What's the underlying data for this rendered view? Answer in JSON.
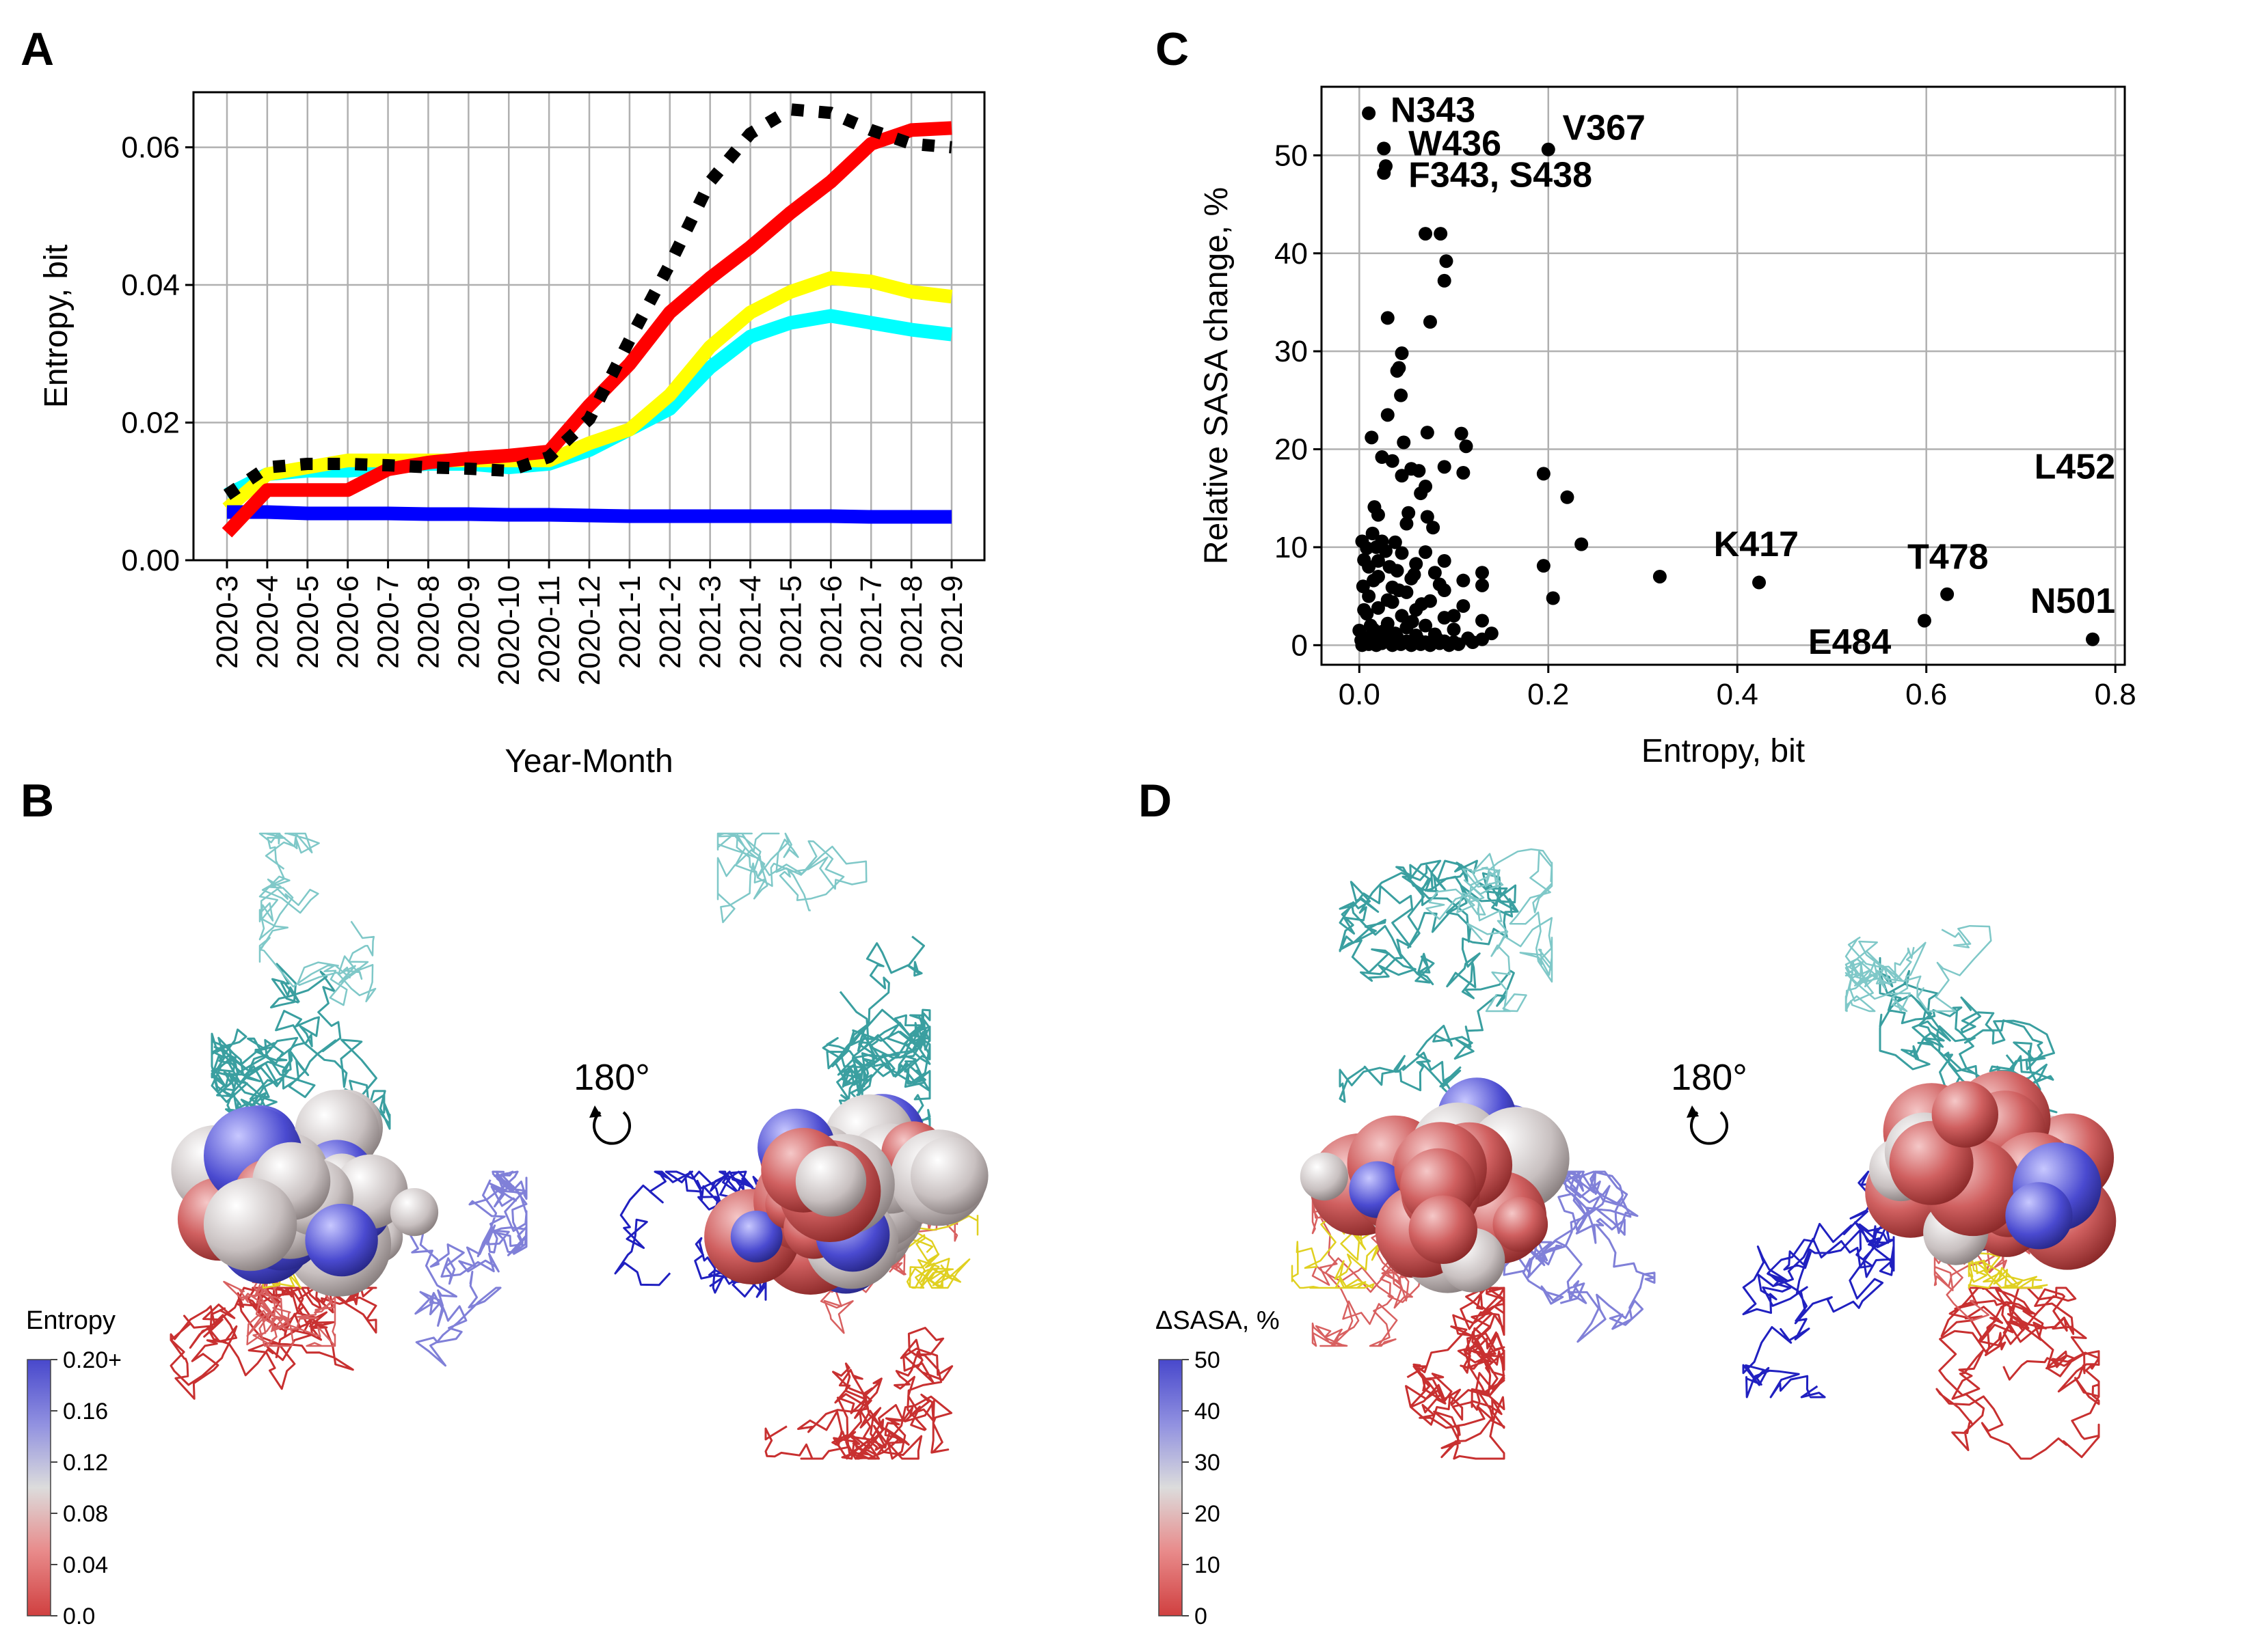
{
  "panels": {
    "A": "A",
    "B": "B",
    "C": "C",
    "D": "D"
  },
  "chart_data": [
    {
      "panel": "A",
      "type": "line",
      "xlabel": "Year-Month",
      "ylabel": "Entropy, bit",
      "ylim": [
        0.0,
        0.068
      ],
      "yticks": [
        "0.00",
        "0.02",
        "0.04",
        "0.06"
      ],
      "ytick_values": [
        0.0,
        0.02,
        0.04,
        0.06
      ],
      "grid": true,
      "categories": [
        "2020-3",
        "2020-4",
        "2020-5",
        "2020-6",
        "2020-7",
        "2020-8",
        "2020-9",
        "2020-10",
        "2020-11",
        "2020-12",
        "2021-1",
        "2021-2",
        "2021-3",
        "2021-4",
        "2021-5",
        "2021-6",
        "2021-7",
        "2021-8",
        "2021-9"
      ],
      "series": [
        {
          "color": "#00ffff",
          "style": "solid",
          "values": [
            0.0095,
            0.0125,
            0.013,
            0.013,
            0.0135,
            0.014,
            0.014,
            0.0135,
            0.014,
            0.016,
            0.019,
            0.022,
            0.028,
            0.0325,
            0.0345,
            0.0355,
            0.0345,
            0.0335,
            0.0328
          ]
        },
        {
          "color": "#ffff00",
          "style": "solid",
          "values": [
            0.0075,
            0.0125,
            0.0135,
            0.0145,
            0.0145,
            0.0145,
            0.0145,
            0.0145,
            0.0145,
            0.017,
            0.019,
            0.024,
            0.031,
            0.036,
            0.039,
            0.041,
            0.0405,
            0.039,
            0.0383
          ]
        },
        {
          "color": "#0000ff",
          "style": "solid",
          "values": [
            0.007,
            0.007,
            0.0068,
            0.0068,
            0.0068,
            0.0067,
            0.0067,
            0.0066,
            0.0066,
            0.0065,
            0.0064,
            0.0064,
            0.0064,
            0.0064,
            0.0064,
            0.0064,
            0.0063,
            0.0063,
            0.0063
          ]
        },
        {
          "color": "#ff0000",
          "style": "solid",
          "values": [
            0.004,
            0.0102,
            0.0102,
            0.0102,
            0.0132,
            0.0142,
            0.0148,
            0.0152,
            0.0158,
            0.0225,
            0.0285,
            0.036,
            0.041,
            0.0455,
            0.0505,
            0.055,
            0.0605,
            0.0625,
            0.0628
          ]
        },
        {
          "color": "#000000",
          "style": "dotted",
          "values": [
            0.0095,
            0.0135,
            0.014,
            0.014,
            0.0138,
            0.0135,
            0.0133,
            0.013,
            0.015,
            0.0205,
            0.032,
            0.043,
            0.055,
            0.062,
            0.0655,
            0.065,
            0.0625,
            0.0605,
            0.06
          ]
        }
      ]
    },
    {
      "panel": "C",
      "type": "scatter",
      "xlabel": "Entropy, bit",
      "ylabel": "Relative SASA change, %",
      "xlim": [
        -0.04,
        0.81
      ],
      "ylim": [
        -2,
        57
      ],
      "xticks": [
        "0.0",
        "0.2",
        "0.4",
        "0.6",
        "0.8"
      ],
      "xtick_values": [
        0.0,
        0.2,
        0.4,
        0.6,
        0.8
      ],
      "yticks": [
        "0",
        "10",
        "20",
        "30",
        "40",
        "50"
      ],
      "ytick_values": [
        0,
        10,
        20,
        30,
        40,
        50
      ],
      "grid": true,
      "labels": [
        {
          "text": "N343",
          "x": 0.033,
          "y": 53.4,
          "anchor": "start"
        },
        {
          "text": "W436",
          "x": 0.052,
          "y": 50.0,
          "anchor": "start"
        },
        {
          "text": "V367",
          "x": 0.215,
          "y": 51.6,
          "anchor": "start"
        },
        {
          "text": "F343, S438",
          "x": 0.052,
          "y": 46.8,
          "anchor": "start"
        },
        {
          "text": "L452",
          "x": 0.8,
          "y": 17.0,
          "anchor": "end"
        },
        {
          "text": "K417",
          "x": 0.375,
          "y": 9.1,
          "anchor": "start"
        },
        {
          "text": "T478",
          "x": 0.58,
          "y": 7.8,
          "anchor": "start"
        },
        {
          "text": "N501",
          "x": 0.8,
          "y": 3.3,
          "anchor": "end"
        },
        {
          "text": "E484",
          "x": 0.475,
          "y": -0.9,
          "anchor": "start"
        }
      ],
      "points": [
        [
          0.01,
          54.3
        ],
        [
          0.026,
          50.7
        ],
        [
          0.2,
          50.6
        ],
        [
          0.028,
          48.9
        ],
        [
          0.026,
          48.2
        ],
        [
          0.07,
          42.0
        ],
        [
          0.086,
          42.0
        ],
        [
          0.092,
          39.2
        ],
        [
          0.09,
          37.2
        ],
        [
          0.075,
          33.0
        ],
        [
          0.03,
          33.4
        ],
        [
          0.045,
          29.8
        ],
        [
          0.042,
          28.3
        ],
        [
          0.04,
          28.0
        ],
        [
          0.044,
          25.5
        ],
        [
          0.03,
          23.5
        ],
        [
          0.013,
          21.2
        ],
        [
          0.072,
          21.7
        ],
        [
          0.108,
          21.6
        ],
        [
          0.113,
          20.3
        ],
        [
          0.047,
          20.7
        ],
        [
          0.024,
          19.2
        ],
        [
          0.035,
          18.8
        ],
        [
          0.055,
          18.0
        ],
        [
          0.063,
          17.8
        ],
        [
          0.09,
          18.2
        ],
        [
          0.11,
          17.6
        ],
        [
          0.195,
          17.5
        ],
        [
          0.045,
          17.3
        ],
        [
          0.07,
          16.2
        ],
        [
          0.065,
          15.5
        ],
        [
          0.22,
          15.1
        ],
        [
          0.016,
          14.1
        ],
        [
          0.02,
          13.3
        ],
        [
          0.052,
          13.5
        ],
        [
          0.072,
          13.1
        ],
        [
          0.05,
          12.4
        ],
        [
          0.078,
          12.0
        ],
        [
          0.014,
          11.4
        ],
        [
          0.003,
          10.6
        ],
        [
          0.024,
          10.6
        ],
        [
          0.038,
          10.5
        ],
        [
          0.235,
          10.3
        ],
        [
          0.008,
          9.9
        ],
        [
          0.028,
          9.6
        ],
        [
          0.07,
          9.5
        ],
        [
          0.045,
          9.4
        ],
        [
          0.005,
          8.7
        ],
        [
          0.02,
          8.6
        ],
        [
          0.09,
          8.6
        ],
        [
          0.06,
          8.3
        ],
        [
          0.195,
          8.1
        ],
        [
          0.01,
          8.0
        ],
        [
          0.04,
          7.6
        ],
        [
          0.13,
          7.4
        ],
        [
          0.08,
          7.4
        ],
        [
          0.318,
          7.0
        ],
        [
          0.02,
          7.0
        ],
        [
          0.055,
          6.8
        ],
        [
          0.11,
          6.6
        ],
        [
          0.423,
          6.4
        ],
        [
          0.13,
          6.1
        ],
        [
          0.004,
          6.0
        ],
        [
          0.035,
          5.9
        ],
        [
          0.09,
          5.6
        ],
        [
          0.05,
          5.4
        ],
        [
          0.622,
          5.2
        ],
        [
          0.01,
          5.0
        ],
        [
          0.205,
          4.8
        ],
        [
          0.03,
          4.6
        ],
        [
          0.075,
          4.5
        ],
        [
          0.11,
          4.0
        ],
        [
          0.02,
          3.8
        ],
        [
          0.06,
          3.6
        ],
        [
          0.008,
          3.2
        ],
        [
          0.045,
          3.0
        ],
        [
          0.09,
          2.8
        ],
        [
          0.598,
          2.5
        ],
        [
          0.13,
          2.5
        ],
        [
          0.03,
          2.2
        ],
        [
          0.012,
          2.0
        ],
        [
          0.07,
          2.0
        ],
        [
          0.05,
          1.8
        ],
        [
          0.1,
          1.6
        ],
        [
          0.0,
          1.5
        ],
        [
          0.025,
          1.4
        ],
        [
          0.14,
          1.2
        ],
        [
          0.08,
          1.1
        ],
        [
          0.06,
          1.0
        ],
        [
          0.02,
          0.9
        ],
        [
          0.009,
          0.8
        ],
        [
          0.04,
          0.8
        ],
        [
          0.115,
          0.7
        ],
        [
          0.776,
          0.6
        ],
        [
          0.13,
          0.6
        ],
        [
          0.002,
          0.5
        ],
        [
          0.016,
          0.5
        ],
        [
          0.03,
          0.4
        ],
        [
          0.05,
          0.4
        ],
        [
          0.07,
          0.3
        ],
        [
          0.09,
          0.4
        ],
        [
          0.1,
          0.3
        ],
        [
          0.12,
          0.3
        ],
        [
          0.006,
          0.2
        ],
        [
          0.024,
          0.2
        ],
        [
          0.044,
          0.1
        ],
        [
          0.065,
          0.1
        ],
        [
          0.085,
          0.2
        ],
        [
          0.105,
          0.1
        ],
        [
          0.01,
          0.1
        ],
        [
          0.035,
          0.0
        ],
        [
          0.055,
          0.0
        ],
        [
          0.075,
          0.0
        ],
        [
          0.095,
          0.0
        ],
        [
          0.003,
          0.0
        ],
        [
          0.018,
          0.0
        ],
        [
          0.062,
          0.6
        ],
        [
          0.082,
          0.7
        ],
        [
          0.038,
          1.2
        ],
        [
          0.015,
          1.6
        ],
        [
          0.056,
          2.4
        ],
        [
          0.1,
          3.0
        ],
        [
          0.005,
          3.6
        ],
        [
          0.066,
          4.2
        ],
        [
          0.042,
          5.6
        ],
        [
          0.085,
          6.2
        ],
        [
          0.015,
          6.6
        ],
        [
          0.058,
          7.2
        ],
        [
          0.032,
          8.0
        ],
        [
          0.018,
          10.0
        ],
        [
          0.035,
          4.4
        ]
      ]
    }
  ],
  "molecules": {
    "rotation_left": "180°",
    "rotation_right": "180°",
    "colorbar_entropy": {
      "title": "Entropy",
      "ticks": [
        "0.20+",
        "0.16",
        "0.12",
        "0.08",
        "0.04",
        "0.0"
      ]
    },
    "colorbar_sasa": {
      "title": "ΔSASA, %",
      "ticks": [
        "50",
        "40",
        "30",
        "20",
        "10",
        "0"
      ]
    }
  }
}
